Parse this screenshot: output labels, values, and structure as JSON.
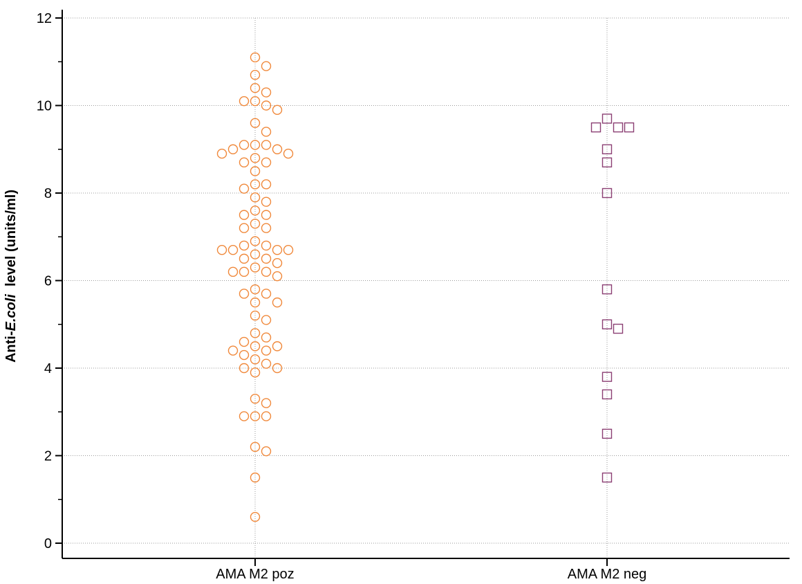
{
  "chart_data": {
    "type": "scatter",
    "title": "",
    "xlabel": "",
    "ylabel": {
      "prefix": "Anti-",
      "italic": "E.coli",
      "suffix": "  level (units/ml)"
    },
    "ylim": [
      0,
      12
    ],
    "yticks": [
      "0",
      "2",
      "4",
      "6",
      "8",
      "10",
      "12"
    ],
    "grid": true,
    "categories": [
      "AMA M2 poz",
      "AMA M2 neg"
    ],
    "colors": {
      "poz": "#f0883a",
      "neg": "#8b3f73"
    },
    "series": [
      {
        "category": "AMA M2 poz",
        "marker": "circle",
        "values": [
          11.1,
          10.9,
          10.7,
          10.4,
          10.3,
          10.1,
          10.1,
          10.0,
          9.9,
          9.6,
          9.4,
          9.1,
          9.1,
          9.1,
          9.0,
          9.0,
          8.9,
          8.9,
          8.8,
          8.7,
          8.7,
          8.5,
          8.2,
          8.2,
          8.1,
          7.9,
          7.8,
          7.6,
          7.5,
          7.5,
          7.3,
          7.2,
          7.2,
          6.9,
          6.8,
          6.8,
          6.7,
          6.7,
          6.7,
          6.7,
          6.6,
          6.5,
          6.5,
          6.4,
          6.3,
          6.2,
          6.2,
          6.2,
          6.1,
          5.8,
          5.7,
          5.7,
          5.5,
          5.5,
          5.2,
          5.1,
          4.8,
          4.7,
          4.6,
          4.5,
          4.5,
          4.4,
          4.4,
          4.3,
          4.2,
          4.1,
          4.0,
          4.0,
          3.9,
          3.3,
          3.2,
          2.9,
          2.9,
          2.9,
          2.2,
          2.1,
          1.5,
          0.6
        ]
      },
      {
        "category": "AMA M2 neg",
        "marker": "square",
        "values": [
          9.7,
          9.5,
          9.5,
          9.5,
          9.0,
          8.7,
          8.0,
          5.8,
          5.0,
          4.9,
          3.8,
          3.4,
          2.5,
          1.5
        ]
      }
    ]
  }
}
